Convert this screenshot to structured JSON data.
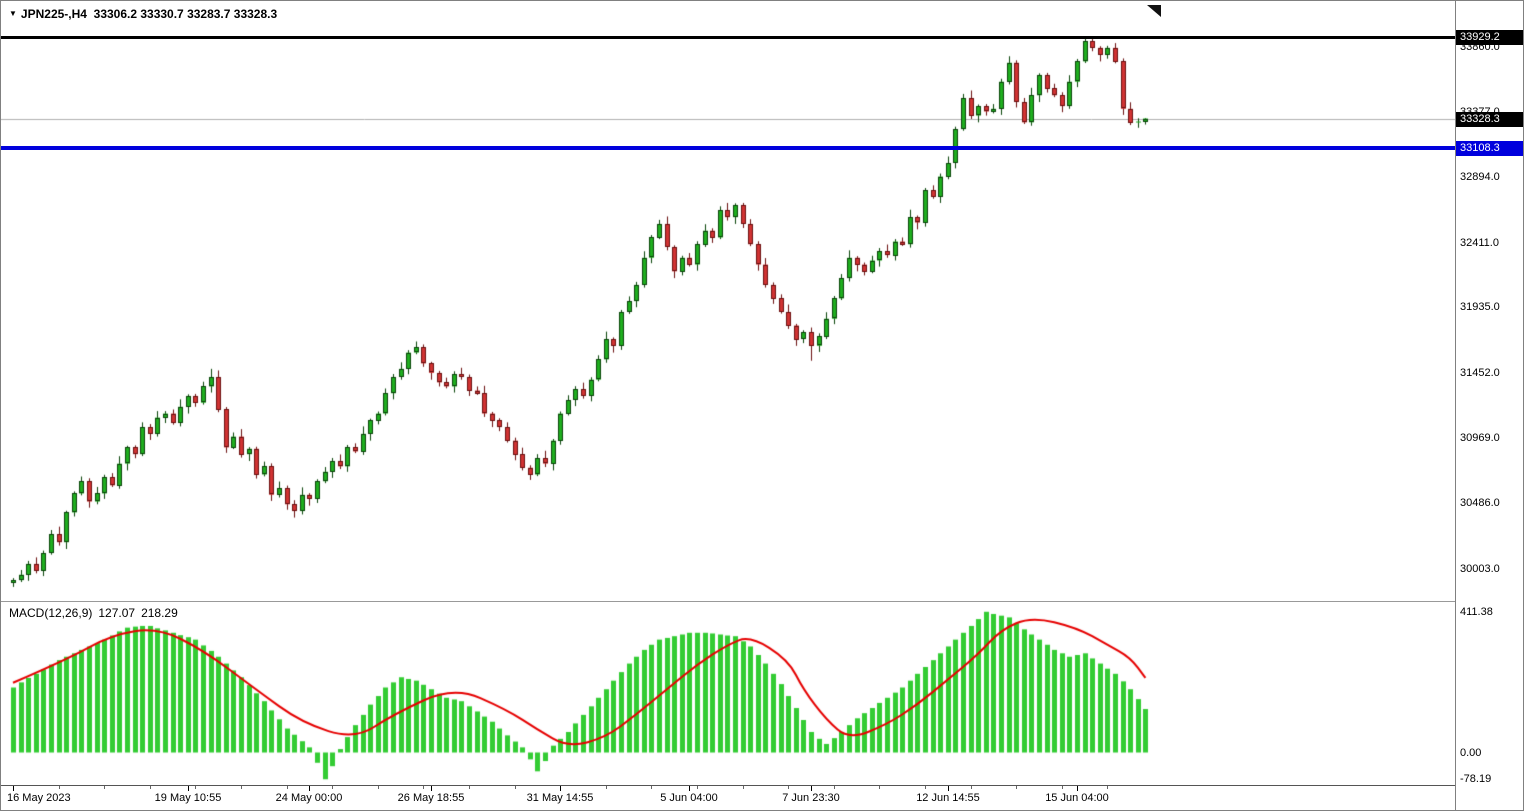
{
  "header": {
    "symbol_tf": "JPN225-,H4",
    "ohlc": "33306.2 33330.7 33283.7 33328.3"
  },
  "icons": {
    "symbol_dropdown": "▼",
    "chart_shift_marker": "corner-triangle"
  },
  "colors": {
    "background": "#ffffff",
    "axis_text": "#000000",
    "badge_text": "#ffffff",
    "bull_fill": "#1fae1f",
    "bull_border": "#094509",
    "bear_fill": "#d03333",
    "bear_border": "#6b0f0f",
    "hist": "#33cc33",
    "signal": "#e60000",
    "blue_line": "#0000dd",
    "high_line": "#000000",
    "price_line": "#b0b0b0",
    "separator": "#999999"
  },
  "chart_data": [
    {
      "type": "candlestick",
      "title": "JPN225-,H4",
      "ylim": [
        29766,
        34196
      ],
      "grid": false,
      "x_tick_labels": [
        "16 May 2023",
        "19 May 10:55",
        "24 May 00:00",
        "26 May 18:55",
        "31 May 14:55",
        "5 Jun 04:00",
        "7 Jun 23:30",
        "12 Jun 14:55",
        "15 Jun 04:00"
      ],
      "x_tick_indices": [
        0,
        23,
        39,
        55,
        72,
        89,
        105,
        123,
        140
      ],
      "price_axis_labels": [
        {
          "text": "33860.0",
          "value": 33860.0
        },
        {
          "text": "33377.0",
          "value": 33377.0
        },
        {
          "text": "32894.0",
          "value": 32894.0
        },
        {
          "text": "32411.0",
          "value": 32411.0
        },
        {
          "text": "31935.0",
          "value": 31935.0
        },
        {
          "text": "31452.0",
          "value": 31452.0
        },
        {
          "text": "30969.0",
          "value": 30969.0
        },
        {
          "text": "30486.0",
          "value": 30486.0
        },
        {
          "text": "30003.0",
          "value": 30003.0
        }
      ],
      "badges": [
        {
          "text": "33929.2",
          "value": 33929.2,
          "bg": "#000000"
        },
        {
          "text": "33328.3",
          "value": 33328.3,
          "bg": "#000000"
        },
        {
          "text": "33108.3",
          "value": 33108.3,
          "bg": "#0000dd"
        }
      ],
      "levels": {
        "high_line": 33929.2,
        "current_price": 33328.3,
        "blue_line": 33108.3
      },
      "candles": [
        [
          29900,
          29935,
          29870,
          29920
        ],
        [
          29920,
          29995,
          29906,
          29960
        ],
        [
          29960,
          30062,
          29915,
          30040
        ],
        [
          30040,
          30088,
          29970,
          29990
        ],
        [
          29990,
          30138,
          29950,
          30120
        ],
        [
          30120,
          30290,
          30108,
          30260
        ],
        [
          30260,
          30315,
          30175,
          30200
        ],
        [
          30200,
          30432,
          30150,
          30420
        ],
        [
          30420,
          30575,
          30390,
          30560
        ],
        [
          30560,
          30685,
          30546,
          30650
        ],
        [
          30650,
          30672,
          30455,
          30500
        ],
        [
          30500,
          30608,
          30480,
          30560
        ],
        [
          30560,
          30698,
          30520,
          30680
        ],
        [
          30680,
          30710,
          30608,
          30620
        ],
        [
          30620,
          30835,
          30595,
          30780
        ],
        [
          30780,
          30912,
          30730,
          30900
        ],
        [
          30900,
          30915,
          30820,
          30850
        ],
        [
          30850,
          31085,
          30836,
          31050
        ],
        [
          31050,
          31072,
          30955,
          31000
        ],
        [
          31000,
          31168,
          30980,
          31120
        ],
        [
          31120,
          31168,
          31080,
          31150
        ],
        [
          31150,
          31180,
          31068,
          31080
        ],
        [
          31080,
          31255,
          31055,
          31200
        ],
        [
          31200,
          31292,
          31150,
          31280
        ],
        [
          31280,
          31295,
          31200,
          31230
        ],
        [
          31230,
          31385,
          31216,
          31350
        ],
        [
          31350,
          31480,
          31305,
          31420
        ],
        [
          31420,
          31468,
          31160,
          31180
        ],
        [
          31180,
          31198,
          30860,
          30900
        ],
        [
          30900,
          31010,
          30888,
          30980
        ],
        [
          30980,
          31035,
          30825,
          30850
        ],
        [
          30850,
          30902,
          30800,
          30890
        ],
        [
          30890,
          30905,
          30670,
          30700
        ],
        [
          30700,
          30795,
          30686,
          30760
        ],
        [
          30760,
          30782,
          30505,
          30550
        ],
        [
          30550,
          30648,
          30530,
          30600
        ],
        [
          30600,
          30618,
          30440,
          30480
        ],
        [
          30480,
          30510,
          30382,
          30430
        ],
        [
          30430,
          30605,
          30405,
          30550
        ],
        [
          30550,
          30562,
          30470,
          30520
        ],
        [
          30520,
          30665,
          30490,
          30650
        ],
        [
          30650,
          30755,
          30636,
          30720
        ],
        [
          30720,
          30822,
          30675,
          30800
        ],
        [
          30800,
          30848,
          30740,
          30760
        ],
        [
          30760,
          30918,
          30720,
          30900
        ],
        [
          30900,
          30930,
          30858,
          30870
        ],
        [
          30870,
          31055,
          30845,
          31000
        ],
        [
          31000,
          31112,
          30950,
          31100
        ],
        [
          31100,
          31165,
          31070,
          31150
        ],
        [
          31150,
          31335,
          31136,
          31300
        ],
        [
          31300,
          31442,
          31255,
          31420
        ],
        [
          31420,
          31528,
          31400,
          31480
        ],
        [
          31480,
          31618,
          31440,
          31600
        ],
        [
          31600,
          31682,
          31588,
          31640
        ],
        [
          31640,
          31660,
          31495,
          31520
        ],
        [
          31520,
          31532,
          31400,
          31450
        ],
        [
          31450,
          31465,
          31350,
          31380
        ],
        [
          31380,
          31415,
          31336,
          31350
        ],
        [
          31350,
          31462,
          31305,
          31440
        ],
        [
          31440,
          31488,
          31400,
          31420
        ],
        [
          31420,
          31438,
          31280,
          31320
        ],
        [
          31320,
          31350,
          31288,
          31300
        ],
        [
          31300,
          31355,
          31125,
          31150
        ],
        [
          31150,
          31162,
          31050,
          31100
        ],
        [
          31100,
          31115,
          31020,
          31050
        ],
        [
          31050,
          31085,
          30936,
          30950
        ],
        [
          30950,
          30972,
          30805,
          30850
        ],
        [
          30850,
          30898,
          30730,
          30750
        ],
        [
          30750,
          30768,
          30660,
          30700
        ],
        [
          30700,
          30850,
          30688,
          30820
        ],
        [
          30820,
          30875,
          30755,
          30780
        ],
        [
          30780,
          30962,
          30730,
          30950
        ],
        [
          30950,
          31165,
          30920,
          31150
        ],
        [
          31150,
          31285,
          31136,
          31250
        ],
        [
          31250,
          31352,
          31205,
          31330
        ],
        [
          31330,
          31378,
          31260,
          31280
        ],
        [
          31280,
          31418,
          31240,
          31400
        ],
        [
          31400,
          31580,
          31388,
          31550
        ],
        [
          31550,
          31755,
          31525,
          31700
        ],
        [
          31700,
          31712,
          31600,
          31650
        ],
        [
          31650,
          31915,
          31620,
          31900
        ],
        [
          31900,
          32015,
          31886,
          31980
        ],
        [
          31980,
          32122,
          31935,
          32100
        ],
        [
          32100,
          32348,
          32080,
          32300
        ],
        [
          32300,
          32468,
          32260,
          32450
        ],
        [
          32450,
          32580,
          32438,
          32550
        ],
        [
          32550,
          32605,
          32355,
          32380
        ],
        [
          32380,
          32392,
          32150,
          32200
        ],
        [
          32200,
          32315,
          32170,
          32300
        ],
        [
          32300,
          32335,
          32236,
          32250
        ],
        [
          32250,
          32422,
          32205,
          32400
        ],
        [
          32400,
          32548,
          32380,
          32500
        ],
        [
          32500,
          32518,
          32410,
          32450
        ],
        [
          32450,
          32680,
          32438,
          32650
        ],
        [
          32650,
          32705,
          32575,
          32600
        ],
        [
          32600,
          32702,
          32550,
          32690
        ],
        [
          32690,
          32705,
          32520,
          32550
        ],
        [
          32550,
          32585,
          32386,
          32400
        ],
        [
          32400,
          32422,
          32205,
          32250
        ],
        [
          32250,
          32298,
          32080,
          32100
        ],
        [
          32100,
          32118,
          31960,
          32000
        ],
        [
          32000,
          32030,
          31888,
          31900
        ],
        [
          31900,
          31955,
          31775,
          31800
        ],
        [
          31800,
          31812,
          31650,
          31700
        ],
        [
          31700,
          31765,
          31670,
          31750
        ],
        [
          31750,
          31785,
          31540,
          31650
        ],
        [
          31650,
          31742,
          31605,
          31720
        ],
        [
          31720,
          31898,
          31700,
          31850
        ],
        [
          31850,
          32018,
          31810,
          32000
        ],
        [
          32000,
          32180,
          31988,
          32150
        ],
        [
          32150,
          32355,
          32125,
          32300
        ],
        [
          32300,
          32312,
          32200,
          32250
        ],
        [
          32250,
          32265,
          32170,
          32200
        ],
        [
          32200,
          32315,
          32186,
          32280
        ],
        [
          32280,
          32372,
          32235,
          32350
        ],
        [
          32350,
          32398,
          32300,
          32320
        ],
        [
          32320,
          32438,
          32280,
          32420
        ],
        [
          32420,
          32450,
          32388,
          32400
        ],
        [
          32400,
          32655,
          32375,
          32600
        ],
        [
          32600,
          32612,
          32510,
          32560
        ],
        [
          32560,
          32815,
          32530,
          32800
        ],
        [
          32800,
          32835,
          32736,
          32750
        ],
        [
          32750,
          32922,
          32705,
          32900
        ],
        [
          32900,
          33048,
          32880,
          33000
        ],
        [
          33000,
          33268,
          32960,
          33250
        ],
        [
          33250,
          33510,
          33238,
          33480
        ],
        [
          33480,
          33535,
          33325,
          33350
        ],
        [
          33350,
          33432,
          33300,
          33420
        ],
        [
          33420,
          33435,
          33350,
          33380
        ],
        [
          33380,
          33435,
          33366,
          33400
        ],
        [
          33400,
          33622,
          33355,
          33600
        ],
        [
          33600,
          33788,
          33580,
          33740
        ],
        [
          33740,
          33758,
          33410,
          33450
        ],
        [
          33450,
          33480,
          33288,
          33300
        ],
        [
          33300,
          33555,
          33275,
          33500
        ],
        [
          33500,
          33662,
          33450,
          33650
        ],
        [
          33650,
          33665,
          33520,
          33550
        ],
        [
          33550,
          33585,
          33486,
          33500
        ],
        [
          33500,
          33522,
          33375,
          33420
        ],
        [
          33420,
          33648,
          33400,
          33600
        ],
        [
          33600,
          33768,
          33560,
          33750
        ],
        [
          33750,
          33929.2,
          33738,
          33900
        ],
        [
          33900,
          33920,
          33825,
          33850
        ],
        [
          33850,
          33862,
          33750,
          33800
        ],
        [
          33800,
          33865,
          33770,
          33850
        ],
        [
          33850,
          33885,
          33736,
          33750
        ],
        [
          33750,
          33772,
          33355,
          33400
        ],
        [
          33400,
          33448,
          33280,
          33300
        ],
        [
          33300,
          33330,
          33260,
          33306.2
        ],
        [
          33306.2,
          33330.7,
          33283.7,
          33328.3
        ]
      ]
    },
    {
      "type": "bar+line",
      "label": "MACD(12,26,9)",
      "macd_value": "127.07",
      "signal_value": "218.29",
      "ylim": [
        -95,
        440
      ],
      "axis_labels": [
        {
          "text": "411.38",
          "value": 411.38
        },
        {
          "text": "0.00",
          "value": 0
        },
        {
          "text": "-78.19",
          "value": -78.19
        }
      ],
      "histogram": [
        190,
        205,
        218,
        230,
        243,
        257,
        270,
        280,
        290,
        300,
        310,
        320,
        330,
        342,
        354,
        365,
        368,
        370,
        370,
        363,
        357,
        350,
        343,
        337,
        330,
        313,
        297,
        280,
        260,
        240,
        220,
        197,
        173,
        150,
        123,
        97,
        70,
        52,
        33,
        15,
        -30,
        -78.19,
        -40,
        10,
        45,
        80,
        110,
        140,
        165,
        190,
        205,
        220,
        215,
        210,
        198,
        185,
        172,
        160,
        155,
        150,
        135,
        120,
        105,
        90,
        70,
        50,
        32,
        15,
        -20,
        -55,
        -25,
        20,
        40,
        60,
        85,
        110,
        135,
        160,
        185,
        210,
        235,
        260,
        280,
        300,
        315,
        330,
        335,
        340,
        345,
        350,
        350,
        350,
        348,
        345,
        342,
        340,
        325,
        310,
        285,
        260,
        230,
        200,
        165,
        130,
        95,
        60,
        40,
        25,
        42,
        60,
        80,
        100,
        115,
        130,
        145,
        160,
        175,
        190,
        210,
        230,
        250,
        270,
        290,
        310,
        330,
        350,
        370,
        390,
        411.38,
        405,
        400,
        395,
        378,
        360,
        345,
        330,
        315,
        300,
        290,
        280,
        285,
        290,
        275,
        260,
        245,
        230,
        208,
        185,
        156,
        127.07
      ],
      "signal_points": [
        [
          0,
          204
        ],
        [
          7,
          271
        ],
        [
          13,
          344
        ],
        [
          19,
          365
        ],
        [
          25,
          300
        ],
        [
          32,
          184
        ],
        [
          38,
          87
        ],
        [
          45,
          38
        ],
        [
          50,
          111
        ],
        [
          58,
          193
        ],
        [
          65,
          125
        ],
        [
          69,
          67
        ],
        [
          73,
          15
        ],
        [
          78,
          44
        ],
        [
          82,
          111
        ],
        [
          86,
          184
        ],
        [
          90,
          257
        ],
        [
          94,
          315
        ],
        [
          97,
          341
        ],
        [
          102,
          271
        ],
        [
          104,
          184
        ],
        [
          107,
          96
        ],
        [
          110,
          38
        ],
        [
          115,
          82
        ],
        [
          119,
          140
        ],
        [
          123,
          213
        ],
        [
          127,
          287
        ],
        [
          130,
          359
        ],
        [
          134,
          397
        ],
        [
          140,
          365
        ],
        [
          144,
          315
        ],
        [
          147,
          278
        ],
        [
          149,
          218.29
        ]
      ]
    }
  ]
}
